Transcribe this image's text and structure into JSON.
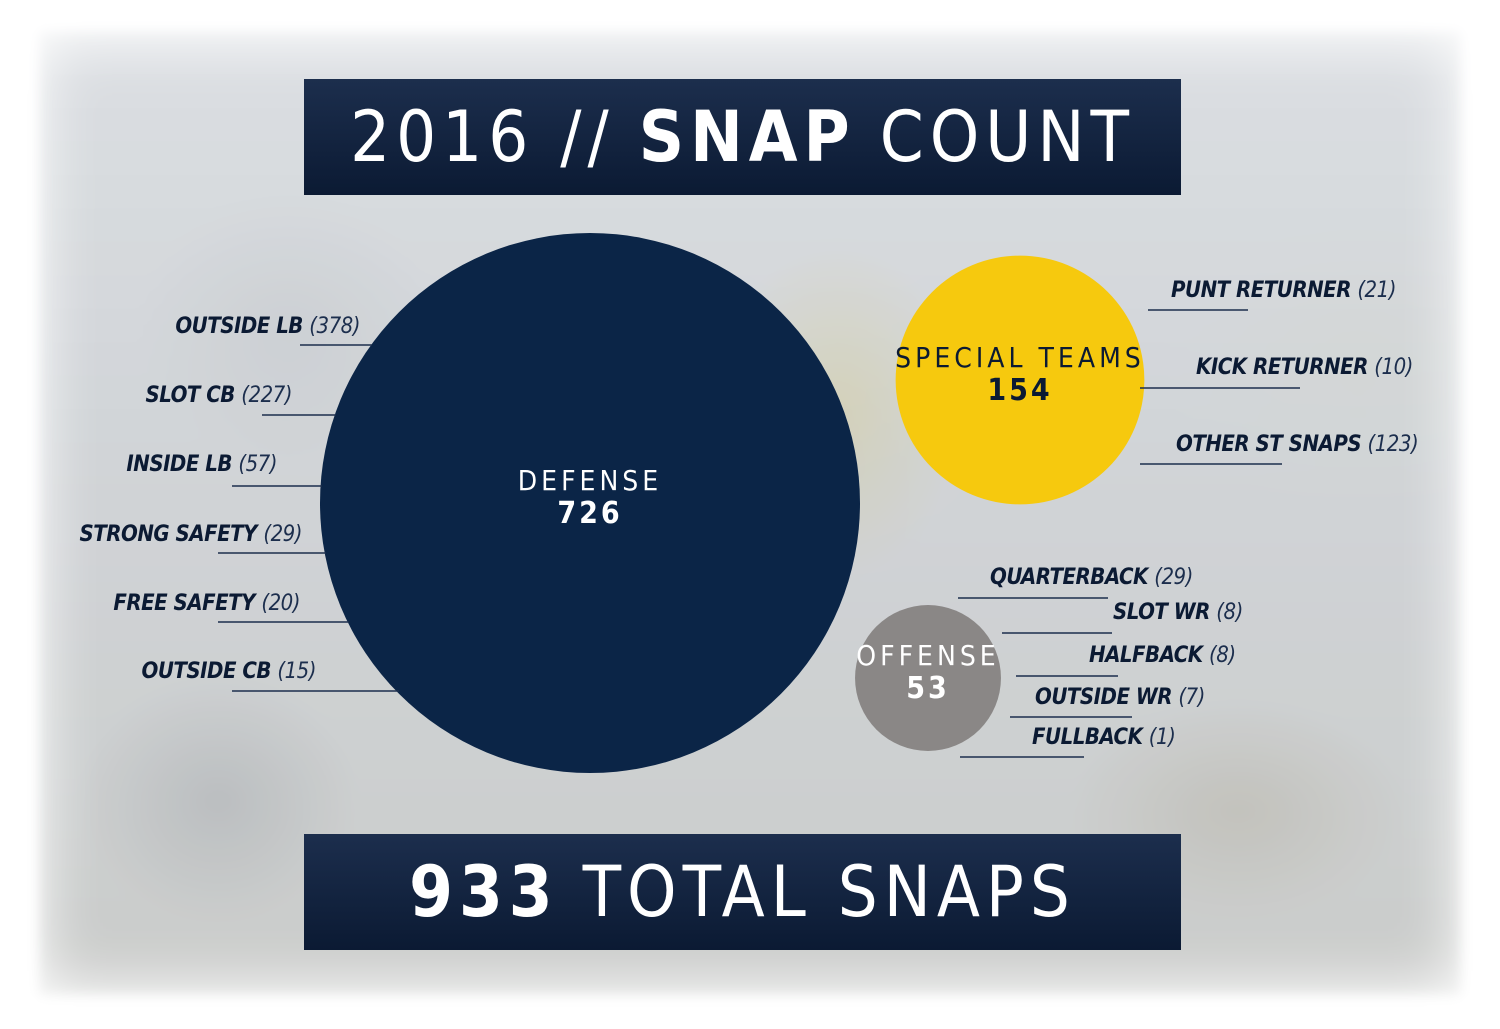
{
  "title": {
    "year": "2016 //",
    "bold": "SNAP",
    "rest": "COUNT"
  },
  "footer": {
    "bold": "933",
    "rest": "TOTAL SNAPS"
  },
  "colors": {
    "navy": "#0b2547",
    "gold": "#f6c90e",
    "gray": "#8a8786",
    "banner": "#0b1a33"
  },
  "chart_data": {
    "type": "bubble",
    "total": 933,
    "groups": [
      {
        "name": "DEFENSE",
        "value": 726,
        "color": "#0b2547",
        "positions": [
          {
            "name": "OUTSIDE LB",
            "value": "(378)"
          },
          {
            "name": "SLOT CB",
            "value": "(227)"
          },
          {
            "name": "INSIDE LB",
            "value": "(57)"
          },
          {
            "name": "STRONG SAFETY",
            "value": "(29)"
          },
          {
            "name": "FREE SAFETY",
            "value": "(20)"
          },
          {
            "name": "OUTSIDE CB",
            "value": "(15)"
          }
        ]
      },
      {
        "name": "SPECIAL TEAMS",
        "value": 154,
        "color": "#f6c90e",
        "positions": [
          {
            "name": "PUNT RETURNER",
            "value": "(21)"
          },
          {
            "name": "KICK RETURNER",
            "value": "(10)"
          },
          {
            "name": "OTHER ST SNAPS",
            "value": "(123)"
          }
        ]
      },
      {
        "name": "OFFENSE",
        "value": 53,
        "color": "#8a8786",
        "positions": [
          {
            "name": "QUARTERBACK",
            "value": "(29)"
          },
          {
            "name": "SLOT WR",
            "value": "(8)"
          },
          {
            "name": "HALFBACK",
            "value": "(8)"
          },
          {
            "name": "OUTSIDE WR",
            "value": "(7)"
          },
          {
            "name": "FULLBACK",
            "value": "(1)"
          }
        ]
      }
    ]
  }
}
